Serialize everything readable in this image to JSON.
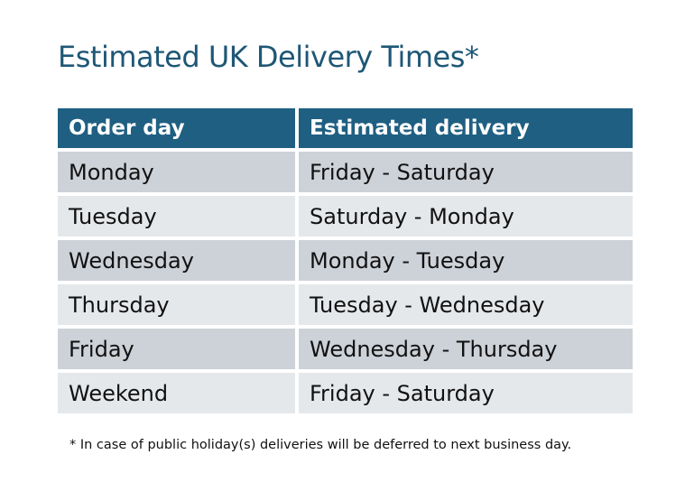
{
  "title": "Estimated UK Delivery Times*",
  "table": {
    "headers": [
      "Order day",
      "Estimated delivery"
    ],
    "rows": [
      [
        "Monday",
        "Friday - Saturday"
      ],
      [
        "Tuesday",
        "Saturday - Monday"
      ],
      [
        "Wednesday",
        "Monday - Tuesday"
      ],
      [
        "Thursday",
        "Tuesday - Wednesday"
      ],
      [
        "Friday",
        "Wednesday - Thursday"
      ],
      [
        "Weekend",
        "Friday - Saturday"
      ]
    ]
  },
  "footnote": "* In case of public holiday(s) deliveries will be deferred to next business day.",
  "colors": {
    "header": "#1f5f82",
    "title": "#1e5776",
    "row_dark": "#cdd1d8",
    "row_light": "#e5e8eb"
  }
}
